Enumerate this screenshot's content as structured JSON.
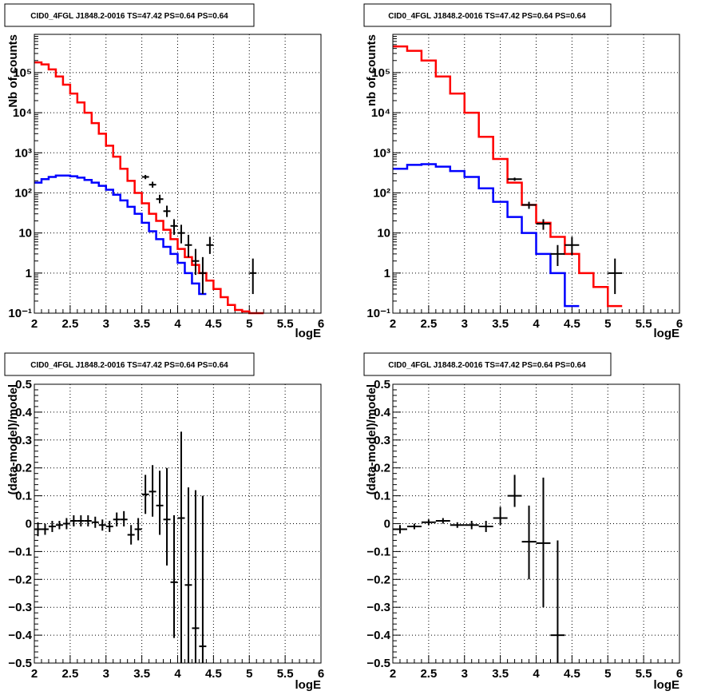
{
  "chart_data": [
    {
      "id": "p1",
      "type": "step-histogram",
      "title": "CID0_4FGL J1848.2-0016 TS=47.42 PS=0.64 PS=0.64",
      "xlabel": "logE",
      "ylabel": "Nb of counts",
      "xlim": [
        2,
        6
      ],
      "ylim": [
        0.1,
        900000
      ],
      "yscale": "log",
      "grid": true,
      "xticks": [
        {
          "v": 2,
          "label": "2"
        },
        {
          "v": 2.5,
          "label": "2.5"
        },
        {
          "v": 3,
          "label": "3"
        },
        {
          "v": 3.5,
          "label": "3.5"
        },
        {
          "v": 4,
          "label": "4"
        },
        {
          "v": 4.5,
          "label": "4.5"
        },
        {
          "v": 5,
          "label": "5"
        },
        {
          "v": 5.5,
          "label": "5.5"
        },
        {
          "v": 6,
          "label": "6"
        }
      ],
      "yticks": [
        {
          "v": 0.1,
          "label": "10⁻¹"
        },
        {
          "v": 1,
          "label": "1"
        },
        {
          "v": 10,
          "label": "10"
        },
        {
          "v": 100,
          "label": "10²"
        },
        {
          "v": 1000,
          "label": "10³"
        },
        {
          "v": 10000,
          "label": "10⁴"
        },
        {
          "v": 100000,
          "label": "10⁵"
        }
      ],
      "series": [
        {
          "color": "#ff0000",
          "kind": "step",
          "edges": [
            2,
            2.1,
            2.2,
            2.3,
            2.4,
            2.5,
            2.6,
            2.7,
            2.8,
            2.9,
            3,
            3.1,
            3.2,
            3.3,
            3.4,
            3.5,
            3.6,
            3.7,
            3.8,
            3.9,
            4,
            4.1,
            4.2,
            4.3,
            4.4,
            4.5,
            4.6,
            4.7,
            4.8,
            4.9,
            5,
            5.1,
            5.2
          ],
          "values": [
            180000,
            160000,
            120000,
            80000,
            50000,
            30000,
            18000,
            10000,
            5500,
            3000,
            1500,
            800,
            400,
            200,
            100,
            55,
            30,
            20,
            12,
            7,
            4,
            2.5,
            1.6,
            1.0,
            0.65,
            0.4,
            0.25,
            0.16,
            0.12,
            0.11,
            0.1,
            0.1
          ]
        },
        {
          "color": "#0000ff",
          "kind": "step",
          "edges": [
            2,
            2.1,
            2.2,
            2.3,
            2.4,
            2.5,
            2.6,
            2.7,
            2.8,
            2.9,
            3,
            3.1,
            3.2,
            3.3,
            3.4,
            3.5,
            3.6,
            3.7,
            3.8,
            3.9,
            4,
            4.1,
            4.2,
            4.3,
            4.4
          ],
          "values": [
            180,
            220,
            250,
            270,
            270,
            260,
            240,
            210,
            180,
            150,
            120,
            90,
            65,
            45,
            30,
            18,
            11,
            7,
            4.5,
            3,
            1.8,
            1.0,
            0.55,
            0.3
          ]
        }
      ],
      "points": {
        "color": "#000000",
        "x": [
          3.55,
          3.65,
          3.75,
          3.85,
          3.95,
          4.05,
          4.15,
          4.25,
          4.35,
          4.45,
          5.05
        ],
        "y": [
          250,
          160,
          70,
          35,
          15,
          10,
          5,
          2,
          1,
          5,
          1
        ],
        "ylo": [
          220,
          135,
          55,
          25,
          9,
          5.5,
          2.5,
          0.9,
          0.3,
          3,
          0.3
        ],
        "yhi": [
          280,
          190,
          90,
          48,
          22,
          16,
          9,
          4,
          2.5,
          8,
          2.3
        ],
        "xerr": 0.05
      }
    },
    {
      "id": "p2",
      "type": "step-histogram",
      "title": "CID0_4FGL J1848.2-0016 TS=47.42 PS=0.64 PS=0.64",
      "xlabel": "logE",
      "ylabel": "nb of counts",
      "xlim": [
        2,
        6
      ],
      "ylim": [
        0.1,
        900000
      ],
      "yscale": "log",
      "grid": true,
      "xticks": [
        {
          "v": 2,
          "label": "2"
        },
        {
          "v": 2.5,
          "label": "2.5"
        },
        {
          "v": 3,
          "label": "3"
        },
        {
          "v": 3.5,
          "label": "3.5"
        },
        {
          "v": 4,
          "label": "4"
        },
        {
          "v": 4.5,
          "label": "4.5"
        },
        {
          "v": 5,
          "label": "5"
        },
        {
          "v": 5.5,
          "label": "5.5"
        },
        {
          "v": 6,
          "label": "6"
        }
      ],
      "yticks": [
        {
          "v": 0.1,
          "label": "10⁻¹"
        },
        {
          "v": 1,
          "label": "1"
        },
        {
          "v": 10,
          "label": "10"
        },
        {
          "v": 100,
          "label": "10²"
        },
        {
          "v": 1000,
          "label": "10³"
        },
        {
          "v": 10000,
          "label": "10⁴"
        },
        {
          "v": 100000,
          "label": "10⁵"
        }
      ],
      "series": [
        {
          "color": "#ff0000",
          "kind": "step",
          "edges": [
            2,
            2.2,
            2.4,
            2.6,
            2.8,
            3,
            3.2,
            3.4,
            3.6,
            3.8,
            4,
            4.2,
            4.4,
            4.6,
            4.8,
            5,
            5.2
          ],
          "values": [
            450000,
            350000,
            200000,
            80000,
            30000,
            10000,
            2500,
            700,
            180,
            50,
            18,
            8,
            3,
            1.0,
            0.45,
            0.15
          ]
        },
        {
          "color": "#0000ff",
          "kind": "step",
          "edges": [
            2,
            2.2,
            2.4,
            2.6,
            2.8,
            3,
            3.2,
            3.4,
            3.6,
            3.8,
            4,
            4.2,
            4.4,
            4.6
          ],
          "values": [
            400,
            500,
            520,
            450,
            350,
            250,
            130,
            60,
            25,
            10,
            3,
            1.0,
            0.15
          ]
        }
      ],
      "points": {
        "color": "#000000",
        "x": [
          3.7,
          3.9,
          4.1,
          4.3,
          4.5,
          5.1
        ],
        "y": [
          220,
          50,
          17,
          3,
          5,
          1
        ],
        "ylo": [
          200,
          40,
          12,
          1.5,
          2.8,
          0.3
        ],
        "yhi": [
          240,
          60,
          22,
          5,
          8,
          2.3
        ],
        "xerr": 0.1
      }
    },
    {
      "id": "p3",
      "type": "errorbar",
      "title": "CID0_4FGL J1848.2-0016 TS=47.42 PS=0.64 PS=0.64",
      "xlabel": "logE",
      "ylabel": "(data-model)/model",
      "xlim": [
        2,
        6
      ],
      "ylim": [
        -0.5,
        0.5
      ],
      "yscale": "linear",
      "grid": true,
      "xticks": [
        {
          "v": 2,
          "label": "2"
        },
        {
          "v": 2.5,
          "label": "2.5"
        },
        {
          "v": 3,
          "label": "3"
        },
        {
          "v": 3.5,
          "label": "3.5"
        },
        {
          "v": 4,
          "label": "4"
        },
        {
          "v": 4.5,
          "label": "4.5"
        },
        {
          "v": 5,
          "label": "5"
        },
        {
          "v": 5.5,
          "label": "5.5"
        },
        {
          "v": 6,
          "label": "6"
        }
      ],
      "yticks": [
        {
          "v": -0.5,
          "label": "−0.5"
        },
        {
          "v": -0.4,
          "label": "−0.4"
        },
        {
          "v": -0.3,
          "label": "−0.3"
        },
        {
          "v": -0.2,
          "label": "−0.2"
        },
        {
          "v": -0.1,
          "label": "−0.1"
        },
        {
          "v": 0,
          "label": "0"
        },
        {
          "v": 0.1,
          "label": "0.1"
        },
        {
          "v": 0.2,
          "label": "0.2"
        },
        {
          "v": 0.3,
          "label": "0.3"
        },
        {
          "v": 0.4,
          "label": "0.4"
        },
        {
          "v": 0.5,
          "label": "0.5"
        }
      ],
      "points": {
        "color": "#000000",
        "xerr": 0.05,
        "x": [
          2.05,
          2.15,
          2.25,
          2.35,
          2.45,
          2.55,
          2.65,
          2.75,
          2.85,
          2.95,
          3.05,
          3.15,
          3.25,
          3.35,
          3.45,
          3.55,
          3.65,
          3.75,
          3.85,
          3.95,
          4.05,
          4.15,
          4.25,
          4.35
        ],
        "y": [
          -0.02,
          -0.02,
          -0.01,
          -0.005,
          0,
          0.01,
          0.01,
          0.01,
          0.005,
          -0.005,
          -0.01,
          0.015,
          0.015,
          -0.04,
          -0.02,
          0.105,
          0.115,
          0.065,
          0.015,
          -0.21,
          0.02,
          -0.22,
          -0.375,
          -0.44
        ],
        "ylo": [
          -0.045,
          -0.04,
          -0.03,
          -0.02,
          -0.02,
          -0.01,
          -0.01,
          -0.01,
          -0.015,
          -0.025,
          -0.03,
          -0.01,
          -0.01,
          -0.075,
          -0.06,
          0.035,
          0.025,
          -0.04,
          -0.15,
          -0.41,
          -0.5,
          -0.5,
          -0.5,
          -0.5
        ],
        "yhi": [
          0.005,
          0,
          0.01,
          0.01,
          0.02,
          0.03,
          0.03,
          0.03,
          0.025,
          0.015,
          0.01,
          0.04,
          0.045,
          -0.005,
          0.02,
          0.175,
          0.21,
          0.19,
          0.2,
          0.03,
          0.33,
          0.13,
          0.12,
          0.1
        ]
      }
    },
    {
      "id": "p4",
      "type": "errorbar",
      "title": "CID0_4FGL J1848.2-0016 TS=47.42 PS=0.64 PS=0.64",
      "xlabel": "logE",
      "ylabel": "(data-model)/model",
      "xlim": [
        2,
        6
      ],
      "ylim": [
        -0.5,
        0.5
      ],
      "yscale": "linear",
      "grid": true,
      "xticks": [
        {
          "v": 2,
          "label": "2"
        },
        {
          "v": 2.5,
          "label": "2.5"
        },
        {
          "v": 3,
          "label": "3"
        },
        {
          "v": 3.5,
          "label": "3.5"
        },
        {
          "v": 4,
          "label": "4"
        },
        {
          "v": 4.5,
          "label": "4.5"
        },
        {
          "v": 5,
          "label": "5"
        },
        {
          "v": 5.5,
          "label": "5.5"
        },
        {
          "v": 6,
          "label": "6"
        }
      ],
      "yticks": [
        {
          "v": -0.5,
          "label": "−0.5"
        },
        {
          "v": -0.4,
          "label": "−0.4"
        },
        {
          "v": -0.3,
          "label": "−0.3"
        },
        {
          "v": -0.2,
          "label": "−0.2"
        },
        {
          "v": -0.1,
          "label": "−0.1"
        },
        {
          "v": 0,
          "label": "0"
        },
        {
          "v": 0.1,
          "label": "0.1"
        },
        {
          "v": 0.2,
          "label": "0.2"
        },
        {
          "v": 0.3,
          "label": "0.3"
        },
        {
          "v": 0.4,
          "label": "0.4"
        },
        {
          "v": 0.5,
          "label": "0.5"
        }
      ],
      "points": {
        "color": "#000000",
        "xerr": 0.1,
        "x": [
          2.1,
          2.3,
          2.5,
          2.7,
          2.9,
          3.1,
          3.3,
          3.5,
          3.7,
          3.9,
          4.1,
          4.3
        ],
        "y": [
          -0.02,
          -0.01,
          0.005,
          0.01,
          -0.005,
          -0.005,
          -0.01,
          0.02,
          0.1,
          -0.065,
          -0.07,
          -0.4
        ],
        "ylo": [
          -0.035,
          -0.02,
          -0.005,
          0,
          -0.015,
          -0.02,
          -0.03,
          -0.005,
          0.06,
          -0.2,
          -0.3,
          -0.5
        ],
        "yhi": [
          -0.005,
          0,
          0.015,
          0.02,
          0.005,
          0.01,
          0.01,
          0.06,
          0.175,
          0.065,
          0.165,
          -0.06
        ]
      }
    }
  ]
}
